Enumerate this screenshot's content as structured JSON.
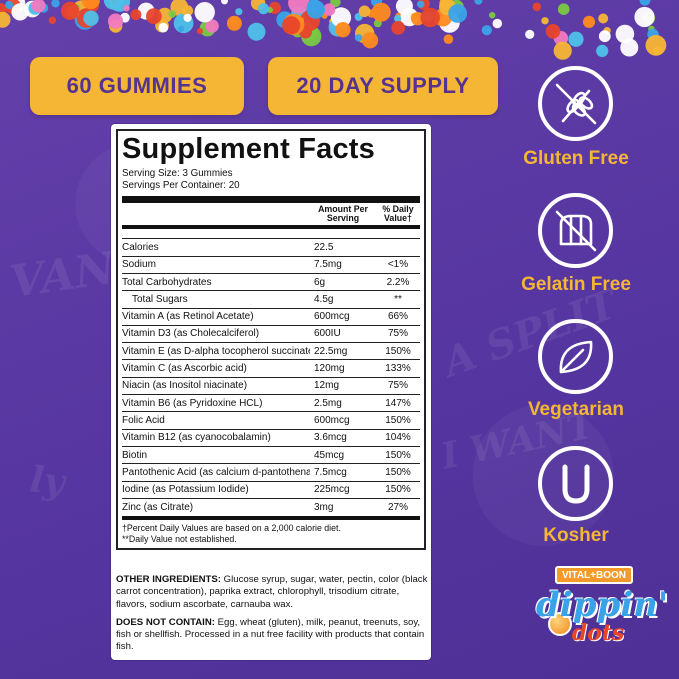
{
  "pills": {
    "count": "60 GUMMIES",
    "supply": "20 DAY SUPPLY"
  },
  "facts": {
    "title": "Supplement Facts",
    "serving_size": "Serving Size: 3 Gummies",
    "servings_per_container": "Servings Per Container: 20",
    "col_amount": "Amount Per Serving",
    "col_dv": "% Daily Value†",
    "rows": [
      {
        "name": "Calories",
        "amount": "22.5",
        "dv": ""
      },
      {
        "name": "Sodium",
        "amount": "7.5mg",
        "dv": "<1%"
      },
      {
        "name": "Total Carbohydrates",
        "amount": "6g",
        "dv": "2.2%"
      },
      {
        "name": "Total Sugars",
        "amount": "4.5g",
        "dv": "**"
      },
      {
        "name": "Vitamin A (as Retinol Acetate)",
        "amount": "600mcg",
        "dv": "66%"
      },
      {
        "name": "Vitamin D3 (as Cholecalciferol)",
        "amount": "600IU",
        "dv": "75%"
      },
      {
        "name": "Vitamin E (as D-alpha tocopherol succinate)",
        "amount": "22.5mg",
        "dv": "150%"
      },
      {
        "name": "Vitamin C (as Ascorbic acid)",
        "amount": "120mg",
        "dv": "133%"
      },
      {
        "name": "Niacin (as Inositol niacinate)",
        "amount": "12mg",
        "dv": "75%"
      },
      {
        "name": "Vitamin B6 (as Pyridoxine HCL)",
        "amount": "2.5mg",
        "dv": "147%"
      },
      {
        "name": "Folic Acid",
        "amount": "600mcg",
        "dv": "150%"
      },
      {
        "name": "Vitamin B12 (as cyanocobalamin)",
        "amount": "3.6mcg",
        "dv": "104%"
      },
      {
        "name": "Biotin",
        "amount": "45mcg",
        "dv": "150%"
      },
      {
        "name": "Pantothenic Acid (as calcium d-pantothenate)",
        "amount": "7.5mcg",
        "dv": "150%"
      },
      {
        "name": "Iodine (as Potassium Iodide)",
        "amount": "225mcg",
        "dv": "150%"
      },
      {
        "name": "Zinc (as Citrate)",
        "amount": "3mg",
        "dv": "27%"
      }
    ],
    "footnote_1": "†Percent Daily Values are based on a 2,000 calorie diet.",
    "footnote_2": "**Daily Value not established."
  },
  "ingredients": {
    "other_label": "OTHER INGREDIENTS:",
    "other_text": " Glucose syrup, sugar, water, pectin, color (black carrot concentration), paprika extract, chlorophyll, trisodium citrate, flavors, sodium ascorbate, carnauba wax.",
    "not_label": "DOES NOT CONTAIN:",
    "not_text": " Egg, wheat (gluten), milk, peanut, treenuts, soy, fish or shellfish. Processed in a nut free facility with products that contain fish."
  },
  "badges": [
    {
      "label": "Gluten Free",
      "icon": "wheat-crossed-icon"
    },
    {
      "label": "Gelatin Free",
      "icon": "gelatin-crossed-icon"
    },
    {
      "label": "Vegetarian",
      "icon": "leaf-icon"
    },
    {
      "label": "Kosher",
      "icon": "kosher-u-icon"
    }
  ],
  "brand": {
    "partner": "VITAL+BOON",
    "logo_text": "dippin' dots"
  },
  "colors": {
    "background": "#5a3a9e",
    "accent": "#f5b535",
    "text_purple": "#55338f"
  }
}
